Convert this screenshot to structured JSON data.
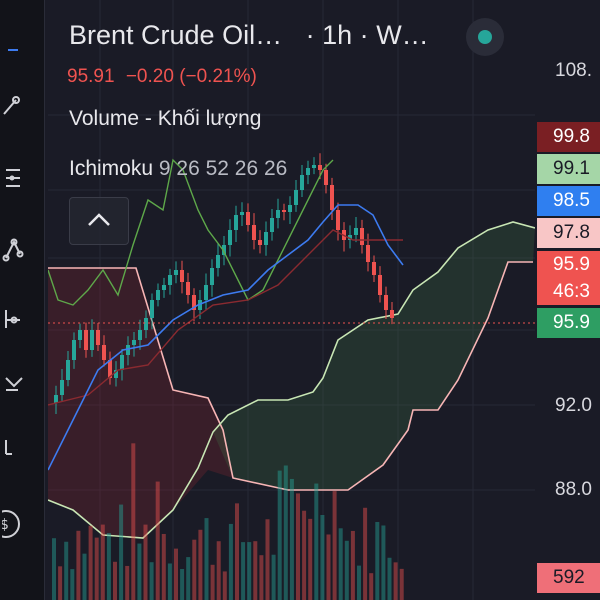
{
  "header": {
    "symbol": "Brent Crude Oil…",
    "separator": "·",
    "interval": "1h",
    "exchange": "W…",
    "status_color": "#26a69a"
  },
  "quote": {
    "last": "95.91",
    "change": "−0.20",
    "change_pct": "(−0.21%)",
    "color": "#ef5350"
  },
  "indicators": {
    "volume": "Volume - Khối lượng",
    "ichimoku_name": "Ichimoku",
    "ichimoku_params": "9 26 52 26 26"
  },
  "price_scale": {
    "ticks": [
      "108.",
      "92.0",
      "88.0"
    ],
    "tags": [
      {
        "text": "99.8",
        "bg": "#7a1f23",
        "color": "#ffffff"
      },
      {
        "text": "99.1",
        "bg": "#a5d6a7",
        "color": "#1a1b26"
      },
      {
        "text": "98.5",
        "bg": "#2f7ff0",
        "color": "#ffffff"
      },
      {
        "text": "97.8",
        "bg": "#f8c6c6",
        "color": "#1a1b26"
      },
      {
        "text": "95.9",
        "bg": "#ef5350",
        "color": "#ffffff"
      },
      {
        "text": "46:3",
        "bg": "#ef5350",
        "color": "#ffffff"
      },
      {
        "text": "95.9",
        "bg": "#2e9e63",
        "color": "#ffffff"
      },
      {
        "text": "592",
        "bg": "#ef6f78",
        "color": "#1a1b26"
      }
    ]
  },
  "toolbar": {
    "icons": [
      "crosshair-icon",
      "trend-line-icon",
      "fib-retracement-icon",
      "pattern-icon",
      "prediction-icon",
      "measure-icon",
      "brush-icon",
      "text-icon",
      "zoom-icon"
    ]
  },
  "colors": {
    "up": "#26a69a",
    "down": "#ef5350",
    "tenkan": "#3d7bf0",
    "kijun": "#8a2a30",
    "lagging": "#5ea84a",
    "span_a": "#c8e6b4",
    "span_b": "#f7b5b5"
  }
}
